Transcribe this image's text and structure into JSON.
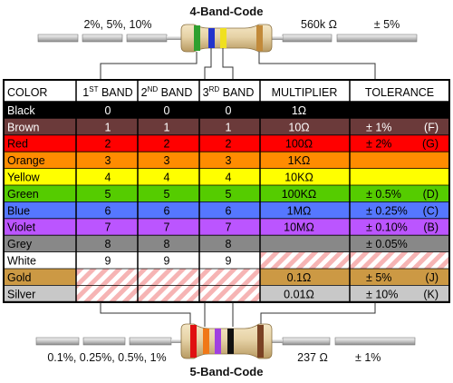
{
  "top": {
    "title": "4-Band-Code",
    "left_label": "2%, 5%, 10%",
    "value_label": "560k Ω",
    "tol_label": "± 5%"
  },
  "bottom": {
    "title": "5-Band-Code",
    "left_label": "0.1%, 0.25%, 0.5%, 1%",
    "value_label": "237 Ω",
    "tol_label": "± 1%"
  },
  "headers": {
    "color": "COLOR",
    "band1_num": "1",
    "band1_sup": "ST",
    "band2_num": "2",
    "band2_sup": "ND",
    "band3_num": "3",
    "band3_sup": "RD",
    "band_word": "BAND",
    "multiplier": "MULTIPLIER",
    "tolerance": "TOLERANCE"
  },
  "rows": [
    {
      "name": "Black",
      "bg": "#000000",
      "text": "#ffffff",
      "b1": "0",
      "b2": "0",
      "b3": "0",
      "mult": "1Ω",
      "tol": "",
      "code": "",
      "no_digit": false,
      "no_mult": false,
      "no_tol": false
    },
    {
      "name": "Brown",
      "bg": "#6b3a3a",
      "text": "#ffffff",
      "b1": "1",
      "b2": "1",
      "b3": "1",
      "mult": "10Ω",
      "tol": "± 1%",
      "code": "(F)",
      "no_digit": false,
      "no_mult": false,
      "no_tol": false
    },
    {
      "name": "Red",
      "bg": "#ff0000",
      "text": "#000000",
      "b1": "2",
      "b2": "2",
      "b3": "2",
      "mult": "100Ω",
      "tol": "± 2%",
      "code": "(G)",
      "no_digit": false,
      "no_mult": false,
      "no_tol": false
    },
    {
      "name": "Orange",
      "bg": "#ff8c00",
      "text": "#000000",
      "b1": "3",
      "b2": "3",
      "b3": "3",
      "mult": "1KΩ",
      "tol": "",
      "code": "",
      "no_digit": false,
      "no_mult": false,
      "no_tol": false
    },
    {
      "name": "Yellow",
      "bg": "#ffff00",
      "text": "#000000",
      "b1": "4",
      "b2": "4",
      "b3": "4",
      "mult": "10KΩ",
      "tol": "",
      "code": "",
      "no_digit": false,
      "no_mult": false,
      "no_tol": false
    },
    {
      "name": "Green",
      "bg": "#55cc00",
      "text": "#000000",
      "b1": "5",
      "b2": "5",
      "b3": "5",
      "mult": "100KΩ",
      "tol": "± 0.5%",
      "code": "(D)",
      "no_digit": false,
      "no_mult": false,
      "no_tol": false
    },
    {
      "name": "Blue",
      "bg": "#5577ff",
      "text": "#000000",
      "b1": "6",
      "b2": "6",
      "b3": "6",
      "mult": "1MΩ",
      "tol": "± 0.25%",
      "code": "(C)",
      "no_digit": false,
      "no_mult": false,
      "no_tol": false
    },
    {
      "name": "Violet",
      "bg": "#bb55ff",
      "text": "#000000",
      "b1": "7",
      "b2": "7",
      "b3": "7",
      "mult": "10MΩ",
      "tol": "± 0.10%",
      "code": "(B)",
      "no_digit": false,
      "no_mult": false,
      "no_tol": false
    },
    {
      "name": "Grey",
      "bg": "#888888",
      "text": "#000000",
      "b1": "8",
      "b2": "8",
      "b3": "8",
      "mult": "",
      "tol": "± 0.05%",
      "code": "",
      "no_digit": false,
      "no_mult": false,
      "no_tol": false
    },
    {
      "name": "White",
      "bg": "#ffffff",
      "text": "#000000",
      "b1": "9",
      "b2": "9",
      "b3": "9",
      "mult": "",
      "tol": "",
      "code": "",
      "no_digit": false,
      "no_mult": true,
      "no_tol": true
    },
    {
      "name": "Gold",
      "bg": "#cc9944",
      "text": "#000000",
      "b1": "",
      "b2": "",
      "b3": "",
      "mult": "0.1Ω",
      "tol": "± 5%",
      "code": "(J)",
      "no_digit": true,
      "no_mult": false,
      "no_tol": false
    },
    {
      "name": "Silver",
      "bg": "#c8c8c8",
      "text": "#000000",
      "b1": "",
      "b2": "",
      "b3": "",
      "mult": "0.01Ω",
      "tol": "± 10%",
      "code": "(K)",
      "no_digit": true,
      "no_mult": false,
      "no_tol": false
    }
  ],
  "colors": {
    "body": "#e6d2a6",
    "stripe": "#f6b4b4",
    "lead": "#c8c8c8"
  }
}
